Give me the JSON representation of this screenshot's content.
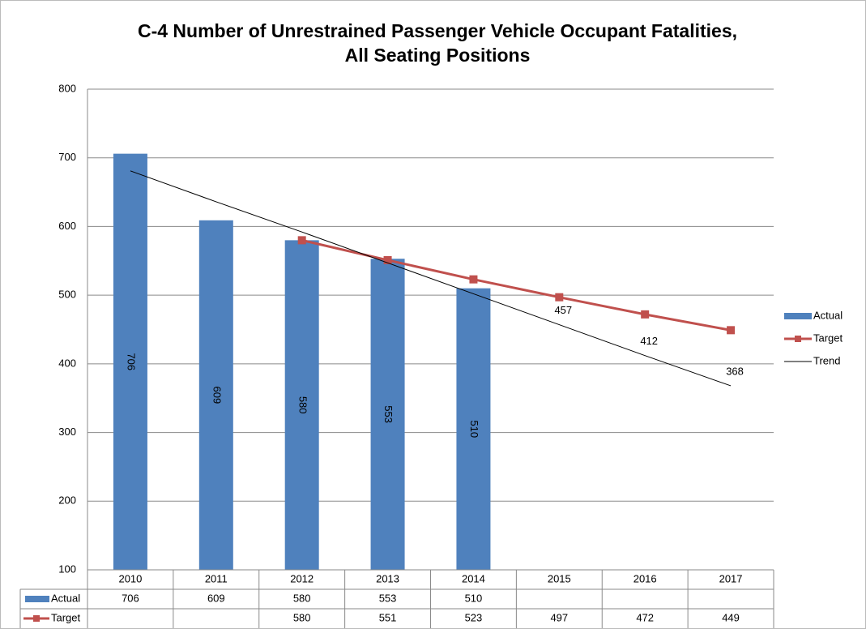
{
  "chart_data": {
    "type": "bar",
    "title": [
      "C-4 Number of Unrestrained Passenger Vehicle Occupant Fatalities,",
      "All Seating Positions"
    ],
    "categories": [
      "2010",
      "2011",
      "2012",
      "2013",
      "2014",
      "2015",
      "2016",
      "2017"
    ],
    "series": [
      {
        "name": "Actual",
        "type": "bar",
        "color": "#4f81bd",
        "in_table": true,
        "bar_labels": true,
        "values": [
          706,
          609,
          580,
          553,
          510,
          null,
          null,
          null
        ]
      },
      {
        "name": "Target",
        "type": "line",
        "marker": "square",
        "color": "#c0504d",
        "in_table": true,
        "values": [
          null,
          null,
          580,
          551,
          523,
          497,
          472,
          449
        ]
      },
      {
        "name": "Trend",
        "type": "line",
        "color": "#000000",
        "in_table": false,
        "values": [
          681,
          636,
          592,
          547,
          502,
          457,
          412,
          368
        ],
        "value_labels": [
          null,
          null,
          null,
          null,
          null,
          "457",
          "412",
          "368"
        ]
      }
    ],
    "ylim": [
      100,
      800
    ],
    "yticks": [
      100,
      200,
      300,
      400,
      500,
      600,
      700,
      800
    ],
    "grid": true,
    "legend": "right"
  }
}
